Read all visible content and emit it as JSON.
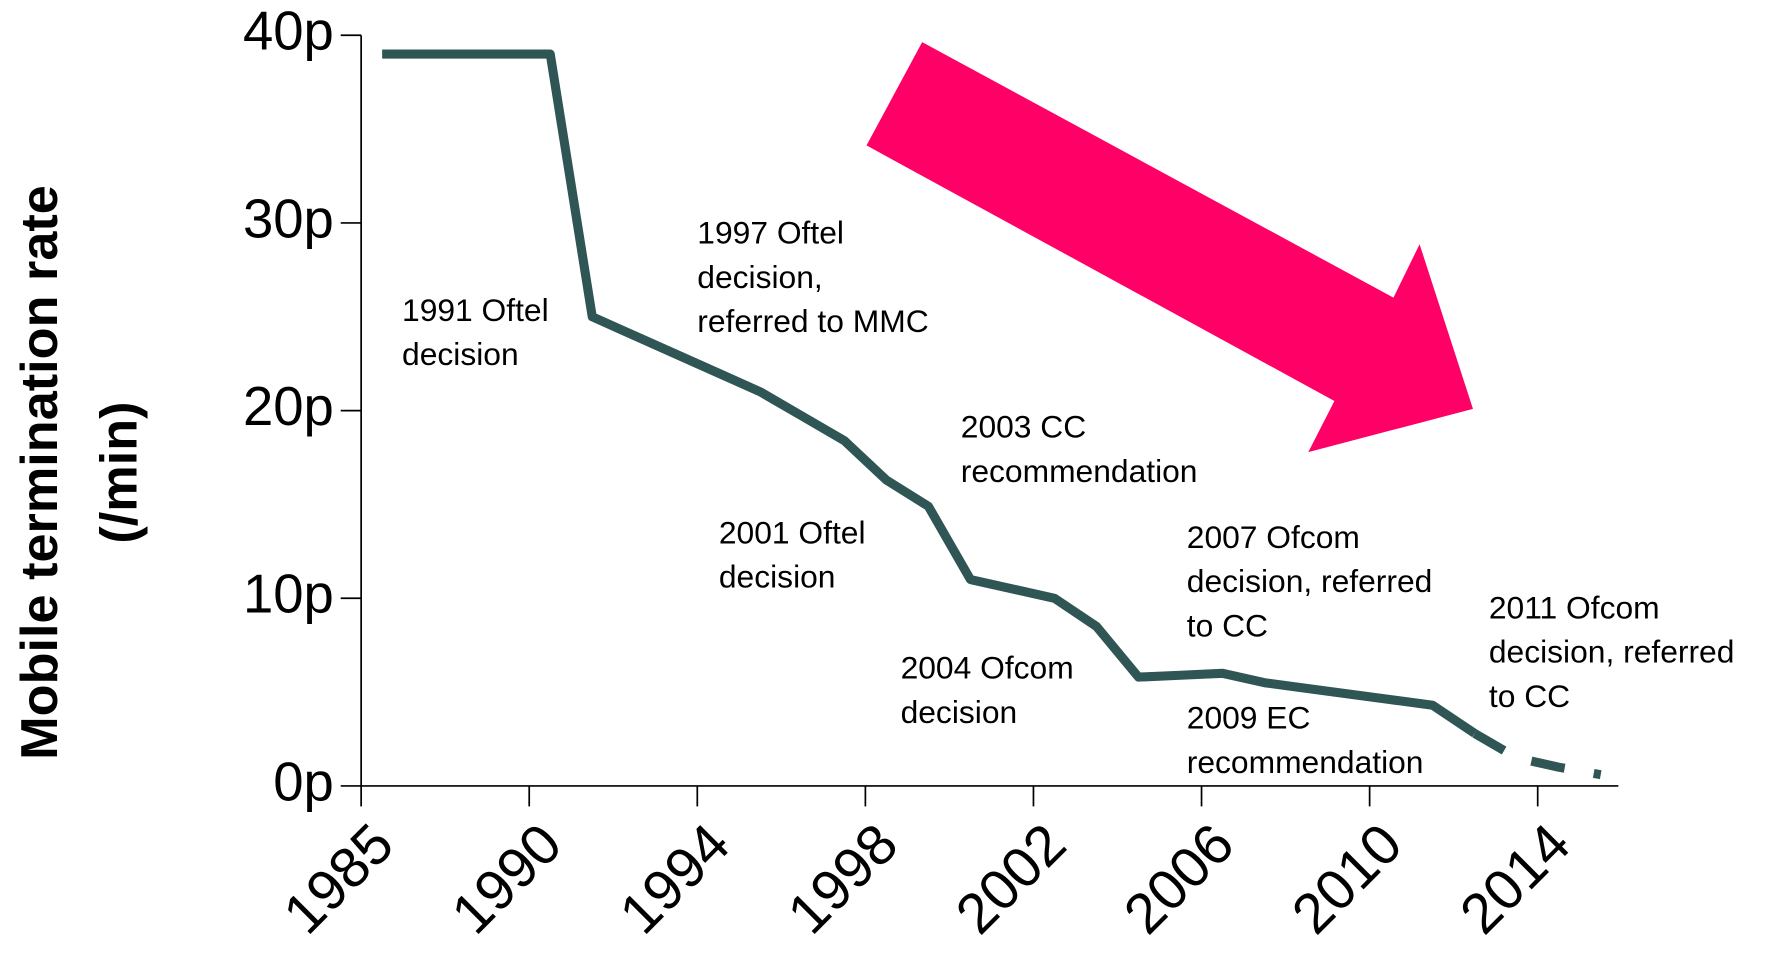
{
  "chart_data": {
    "type": "line",
    "ylabel": [
      "Mobile termination rate",
      "(/min)"
    ],
    "categories": [
      "1985",
      null,
      null,
      null,
      "1990",
      null,
      null,
      null,
      "1994",
      null,
      null,
      null,
      "1998",
      null,
      null,
      null,
      "2002",
      null,
      null,
      null,
      "2006",
      null,
      null,
      null,
      "2010",
      null,
      null,
      null,
      "2014",
      null
    ],
    "series": [
      {
        "color": "#2f5555",
        "style": "solid",
        "values": [
          39,
          39,
          39,
          39,
          39,
          25,
          24,
          23,
          22,
          21,
          19.7,
          18.4,
          16.3,
          14.9,
          11,
          10.5,
          10,
          8.5,
          5.8,
          5.9,
          6,
          5.5,
          5.2,
          4.9,
          4.6,
          4.3,
          2.8,
          null,
          null,
          null
        ]
      },
      {
        "color": "#2f5555",
        "style": "dashed",
        "values": [
          null,
          null,
          null,
          null,
          null,
          null,
          null,
          null,
          null,
          null,
          null,
          null,
          null,
          null,
          null,
          null,
          null,
          null,
          null,
          null,
          null,
          null,
          null,
          null,
          null,
          null,
          2.8,
          1.5,
          1,
          0.6
        ]
      }
    ],
    "ylim": [
      0,
      40
    ],
    "yticks": [
      {
        "value": 0,
        "label": "0p"
      },
      {
        "value": 10,
        "label": "10p"
      },
      {
        "value": 20,
        "label": "20p"
      },
      {
        "value": 30,
        "label": "30p"
      },
      {
        "value": 40,
        "label": "40p"
      }
    ],
    "annotations": [
      [
        "1991 Oftel",
        "decision"
      ],
      [
        "1997 Oftel",
        "decision,",
        "referred to MMC"
      ],
      [
        "2003 CC",
        "recommendation"
      ],
      [
        "2001 Oftel",
        "decision"
      ],
      [
        "2007 Ofcom",
        "decision, referred",
        "to CC"
      ],
      [
        "2011 Ofcom",
        "decision, referred",
        "to CC"
      ],
      [
        "2004 Ofcom",
        "decision"
      ],
      [
        "2009 EC",
        "recommendation"
      ]
    ]
  }
}
